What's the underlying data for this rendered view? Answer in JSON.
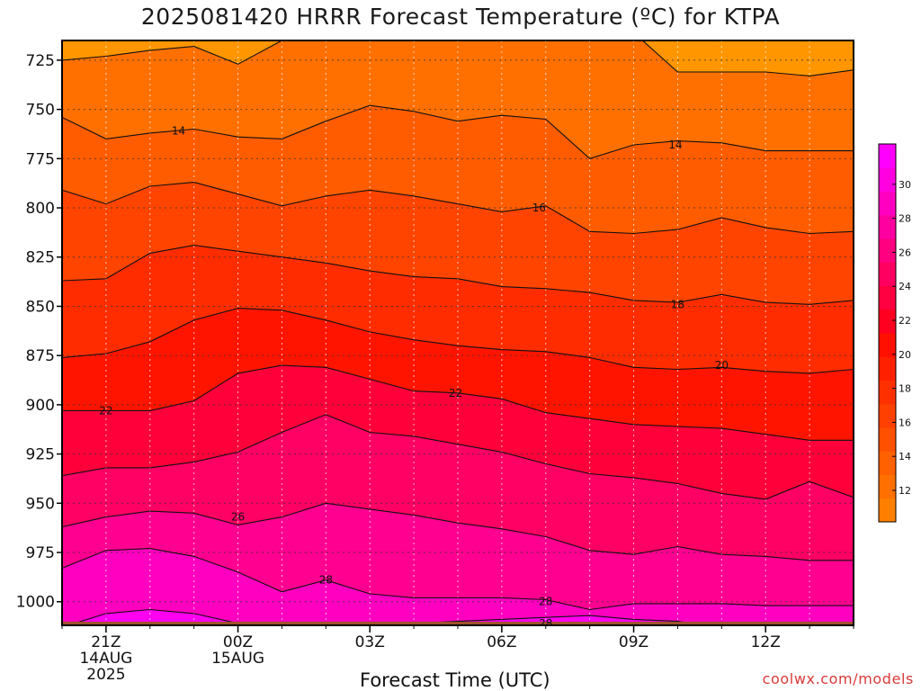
{
  "page": {
    "title": "2025081420 HRRR Forecast Temperature (ºC) for KTPA",
    "credit": "coolwx.com/models"
  },
  "chart_data": {
    "type": "contour-fill",
    "title": "2025081420 HRRR Forecast Temperature (ºC) for KTPA",
    "xlabel": "Forecast Time (UTC)",
    "ylabel": "",
    "x_hours": [
      0,
      1,
      2,
      3,
      4,
      5,
      6,
      7,
      8,
      9,
      10,
      11,
      12,
      13,
      14,
      15,
      16,
      17,
      18
    ],
    "x_ticks": [
      {
        "hour": 1,
        "label": "21Z",
        "sub1": "14AUG",
        "sub2": "2025"
      },
      {
        "hour": 4,
        "label": "00Z",
        "sub1": "15AUG",
        "sub2": ""
      },
      {
        "hour": 7,
        "label": "03Z",
        "sub1": "",
        "sub2": ""
      },
      {
        "hour": 10,
        "label": "06Z",
        "sub1": "",
        "sub2": ""
      },
      {
        "hour": 13,
        "label": "09Z",
        "sub1": "",
        "sub2": ""
      },
      {
        "hour": 16,
        "label": "12Z",
        "sub1": "",
        "sub2": ""
      }
    ],
    "y_ticks": [
      725,
      750,
      775,
      800,
      825,
      850,
      875,
      900,
      925,
      950,
      975,
      1000
    ],
    "y_axis": {
      "top_hPa": 715,
      "bottom_hPa": 1012,
      "reversed": true
    },
    "surface_pressure_hPa": 1012,
    "grid": true,
    "contour_levels": [
      12,
      13,
      14,
      15,
      16,
      17,
      18,
      19,
      20,
      21,
      22,
      23,
      24,
      25,
      26,
      27,
      28,
      29,
      30,
      31
    ],
    "isotherms": [
      {
        "value": 13,
        "pressure": [
          725,
          723,
          720,
          718,
          727,
          715,
          713,
          711,
          710,
          710,
          710,
          710,
          710,
          711,
          731,
          731,
          731,
          733,
          730
        ]
      },
      {
        "value": 14,
        "pressure": [
          754,
          765,
          762,
          760,
          764,
          765,
          756,
          748,
          751,
          756,
          753,
          755,
          775,
          768,
          766,
          767,
          771,
          771,
          771
        ]
      },
      {
        "value": 15,
        "pressure": [
          791,
          798,
          789,
          787,
          793,
          799,
          794,
          791,
          794,
          798,
          802,
          799,
          812,
          813,
          811,
          805,
          810,
          813,
          812
        ]
      },
      {
        "value": 16,
        "pressure": [
          837,
          836,
          823,
          819,
          822,
          825,
          828,
          832,
          835,
          836,
          840,
          841,
          843,
          847,
          848,
          844,
          848,
          849,
          847
        ]
      },
      {
        "value": 17,
        "pressure": [
          876,
          874,
          868,
          857,
          851,
          852,
          857,
          863,
          867,
          870,
          872,
          873,
          876,
          881,
          882,
          881,
          883,
          884,
          882
        ]
      },
      {
        "value": 18,
        "pressure": [
          903,
          903,
          903,
          898,
          884,
          880,
          881,
          887,
          893,
          894,
          897,
          904,
          907,
          910,
          911,
          912,
          915,
          918,
          918
        ]
      },
      {
        "value": 19,
        "pressure": [
          936,
          932,
          932,
          929,
          924,
          914,
          905,
          914,
          916,
          920,
          924,
          930,
          935,
          937,
          940,
          945,
          948,
          939,
          947
        ]
      },
      {
        "value": 20,
        "pressure": [
          962,
          957,
          954,
          955,
          961,
          957,
          950,
          953,
          956,
          960,
          963,
          967,
          974,
          976,
          972,
          976,
          977,
          979,
          979
        ]
      },
      {
        "value": 21,
        "pressure": [
          983,
          974,
          973,
          977,
          985,
          995,
          989,
          996,
          998,
          998,
          998,
          999,
          1004,
          1001,
          1001,
          1001,
          1002,
          1002,
          1002
        ]
      },
      {
        "value": 22,
        "pressure": [
          1013,
          1006,
          1004,
          1006,
          1011,
          1013,
          1012,
          1012,
          1011,
          1010,
          1009,
          1008,
          1007,
          1009,
          1010,
          1013,
          1013,
          1013,
          1013
        ]
      }
    ],
    "contour_labels": [
      {
        "text": "14",
        "hour": 2.65,
        "pressure": 761
      },
      {
        "text": "14",
        "hour": 13.95,
        "pressure": 768
      },
      {
        "text": "16",
        "hour": 10.85,
        "pressure": 800
      },
      {
        "text": "18",
        "hour": 14.0,
        "pressure": 849
      },
      {
        "text": "20",
        "hour": 15.0,
        "pressure": 880
      },
      {
        "text": "22",
        "hour": 1.0,
        "pressure": 903
      },
      {
        "text": "22",
        "hour": 8.95,
        "pressure": 894
      },
      {
        "text": "26",
        "hour": 4.0,
        "pressure": 957
      },
      {
        "text": "28",
        "hour": 6.0,
        "pressure": 989
      },
      {
        "text": "28",
        "hour": 11.0,
        "pressure": 1000
      },
      {
        "text": "28",
        "hour": 11.0,
        "pressure": 1011
      }
    ],
    "colorbar": {
      "colors": [
        "#ff8000",
        "#ff7000",
        "#ff6000",
        "#ff5000",
        "#ff4000",
        "#ff3000",
        "#ff2000",
        "#ff1000",
        "#ff0020",
        "#ff0040",
        "#ff0060",
        "#ff0080",
        "#ff00a0",
        "#ff00c0",
        "#ff00e0",
        "#ff00ff"
      ],
      "tick_labels": [
        "12",
        "14",
        "16",
        "18",
        "20",
        "22",
        "24",
        "26",
        "28",
        "30"
      ]
    }
  }
}
